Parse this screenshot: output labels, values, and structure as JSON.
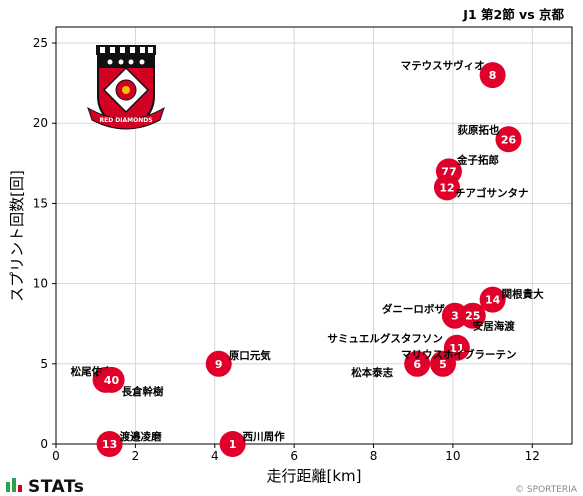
{
  "header": {
    "title": "J1 第2節 vs 京都"
  },
  "footer": {
    "brand": "STATs",
    "copyright": "© SPORTERIA"
  },
  "colors": {
    "point": "#e0002a",
    "grid": "#cfcfcf",
    "crest_red": "#d40023",
    "crest_black": "#111111",
    "stats_green": "#2aa14a"
  },
  "crest": {
    "icon": "urawa-red-diamonds-crest-icon"
  },
  "chart_data": {
    "type": "scatter",
    "title": "J1 第2節 vs 京都",
    "xlabel": "走行距離[km]",
    "ylabel": "スプリント回数[回]",
    "xlim": [
      0,
      13
    ],
    "ylim": [
      0,
      26
    ],
    "xticks": [
      0,
      2,
      4,
      6,
      8,
      10,
      12
    ],
    "yticks": [
      0,
      5,
      10,
      15,
      20,
      25
    ],
    "grid": true,
    "points": [
      {
        "number": "8",
        "name": "マテウスサヴィオ",
        "x": 11.0,
        "y": 23
      },
      {
        "number": "26",
        "name": "荻原拓也",
        "x": 11.4,
        "y": 19
      },
      {
        "number": "77",
        "name": "金子拓郎",
        "x": 9.9,
        "y": 17
      },
      {
        "number": "12",
        "name": "チアゴサンタナ",
        "x": 9.85,
        "y": 16
      },
      {
        "number": "14",
        "name": "関根貴大",
        "x": 11.0,
        "y": 9
      },
      {
        "number": "3",
        "name": "ダニーロボザ",
        "x": 10.05,
        "y": 8
      },
      {
        "number": "25",
        "name": "安居海渡",
        "x": 10.5,
        "y": 8
      },
      {
        "number": "11",
        "name": "サミュエルグスタフソン",
        "x": 10.1,
        "y": 6
      },
      {
        "number": "6",
        "name": "松本泰志",
        "x": 9.1,
        "y": 5
      },
      {
        "number": "5",
        "name": "マリウスホイブラーテン",
        "x": 9.75,
        "y": 5
      },
      {
        "number": "9",
        "name": "原口元気",
        "x": 4.1,
        "y": 5
      },
      {
        "number": "2",
        "name": "松尾佑介",
        "x": 1.25,
        "y": 4
      },
      {
        "number": "40",
        "name": "長倉幹樹",
        "x": 1.4,
        "y": 4
      },
      {
        "number": "13",
        "name": "渡邉凌磨",
        "x": 1.35,
        "y": 0
      },
      {
        "number": "1",
        "name": "西川周作",
        "x": 4.45,
        "y": 0
      }
    ]
  }
}
